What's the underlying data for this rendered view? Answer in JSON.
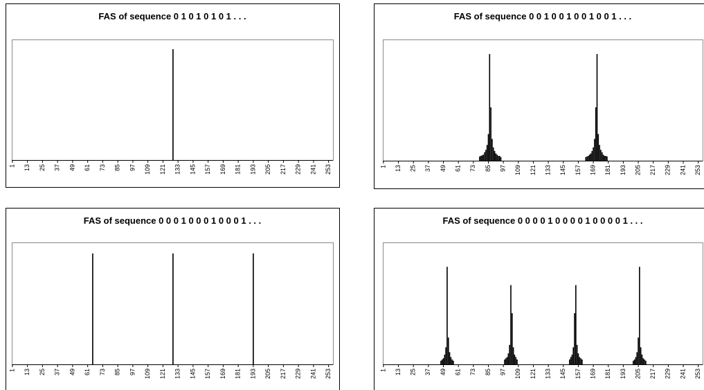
{
  "chart_data": [
    {
      "type": "bar",
      "title": "FAS of sequence 0 1 0 1 0 1 0 1 . . .",
      "color": "#000000",
      "x": [
        129
      ],
      "values": [
        92
      ],
      "xlim": [
        0.5,
        256.5
      ],
      "ylim": [
        0,
        100
      ],
      "xticks": [
        1,
        13,
        25,
        37,
        49,
        61,
        73,
        85,
        97,
        109,
        121,
        133,
        145,
        157,
        169,
        181,
        193,
        205,
        217,
        229,
        241,
        253
      ]
    },
    {
      "type": "bar",
      "title": "FAS of sequence 0 0 1  0 0 1  0 0 1 0 0 1 . . .",
      "color": "#000000",
      "x": [
        78,
        79,
        80,
        81,
        82,
        83,
        84,
        85,
        86,
        87,
        88,
        89,
        90,
        91,
        92,
        93,
        94,
        95,
        163,
        164,
        165,
        166,
        167,
        168,
        169,
        170,
        171,
        172,
        173,
        174,
        175,
        176,
        177,
        178,
        179,
        180
      ],
      "values": [
        3.5,
        4,
        4.5,
        5,
        7,
        9,
        13,
        22,
        88,
        44,
        18,
        11,
        8,
        6,
        5,
        4,
        4,
        3,
        3,
        3.5,
        4,
        5,
        6,
        8,
        11,
        18,
        44,
        88,
        22,
        13,
        9,
        7,
        5,
        4,
        4,
        3.5
      ],
      "xlim": [
        0.5,
        256.5
      ],
      "ylim": [
        0,
        100
      ],
      "xticks": [
        1,
        13,
        25,
        37,
        49,
        61,
        73,
        85,
        97,
        109,
        121,
        133,
        145,
        157,
        169,
        181,
        193,
        205,
        217,
        229,
        241,
        253
      ]
    },
    {
      "type": "bar",
      "title": "FAS of sequence 0 0 0 1 0 0 0 1 0 0 0 1 . . .",
      "color": "#000000",
      "x": [
        65,
        129,
        193
      ],
      "values": [
        91,
        91,
        91
      ],
      "xlim": [
        0.5,
        256.5
      ],
      "ylim": [
        0,
        100
      ],
      "xticks": [
        1,
        13,
        25,
        37,
        49,
        61,
        73,
        85,
        97,
        109,
        121,
        133,
        145,
        157,
        169,
        181,
        193,
        205,
        217,
        229,
        241,
        253
      ]
    },
    {
      "type": "bar",
      "title": "FAS of sequence 0 0 0 0 1 0 0 0 0 1 0 0 0 0 1 . . .",
      "color": "#000000",
      "x": [
        47,
        48,
        49,
        50,
        51,
        52,
        53,
        54,
        55,
        56,
        57,
        98,
        99,
        100,
        101,
        102,
        103,
        104,
        105,
        106,
        107,
        108,
        150,
        151,
        152,
        153,
        154,
        155,
        156,
        157,
        158,
        159,
        160,
        201,
        202,
        203,
        204,
        205,
        206,
        207,
        208,
        209,
        210,
        211
      ],
      "values": [
        3,
        4,
        5,
        8,
        14,
        80,
        22,
        10,
        6,
        4,
        3,
        4,
        5,
        6,
        9,
        16,
        65,
        42,
        14,
        8,
        6,
        4,
        4,
        6,
        8,
        14,
        42,
        65,
        16,
        9,
        6,
        5,
        4,
        3,
        4,
        6,
        10,
        22,
        80,
        14,
        8,
        5,
        4,
        3
      ],
      "xlim": [
        0.5,
        256.5
      ],
      "ylim": [
        0,
        100
      ],
      "xticks": [
        1,
        13,
        25,
        37,
        49,
        61,
        73,
        85,
        97,
        109,
        121,
        133,
        145,
        157,
        169,
        181,
        193,
        205,
        217,
        229,
        241,
        253
      ]
    }
  ]
}
